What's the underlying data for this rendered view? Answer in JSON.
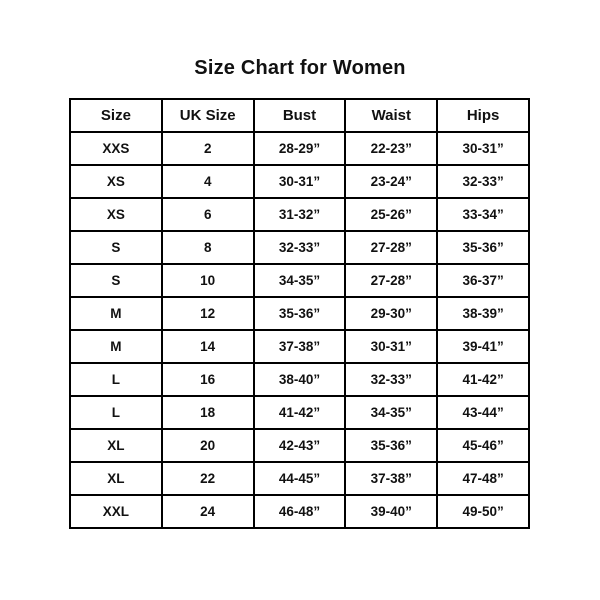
{
  "page": {
    "title": "Size Chart for Women"
  },
  "chart_data": {
    "type": "table",
    "title": "Size Chart for Women",
    "columns": [
      "Size",
      "UK Size",
      "Bust",
      "Waist",
      "Hips"
    ],
    "rows": [
      [
        "XXS",
        "2",
        "28-29”",
        "22-23”",
        "30-31”"
      ],
      [
        "XS",
        "4",
        "30-31”",
        "23-24”",
        "32-33”"
      ],
      [
        "XS",
        "6",
        "31-32”",
        "25-26”",
        "33-34”"
      ],
      [
        "S",
        "8",
        "32-33”",
        "27-28”",
        "35-36”"
      ],
      [
        "S",
        "10",
        "34-35”",
        "27-28”",
        "36-37”"
      ],
      [
        "M",
        "12",
        "35-36”",
        "29-30”",
        "38-39”"
      ],
      [
        "M",
        "14",
        "37-38”",
        "30-31”",
        "39-41”"
      ],
      [
        "L",
        "16",
        "38-40”",
        "32-33”",
        "41-42”"
      ],
      [
        "L",
        "18",
        "41-42”",
        "34-35”",
        "43-44”"
      ],
      [
        "XL",
        "20",
        "42-43”",
        "35-36”",
        "45-46”"
      ],
      [
        "XL",
        "22",
        "44-45”",
        "37-38”",
        "47-48”"
      ],
      [
        "XXL",
        "24",
        "46-48”",
        "39-40”",
        "49-50”"
      ]
    ]
  }
}
